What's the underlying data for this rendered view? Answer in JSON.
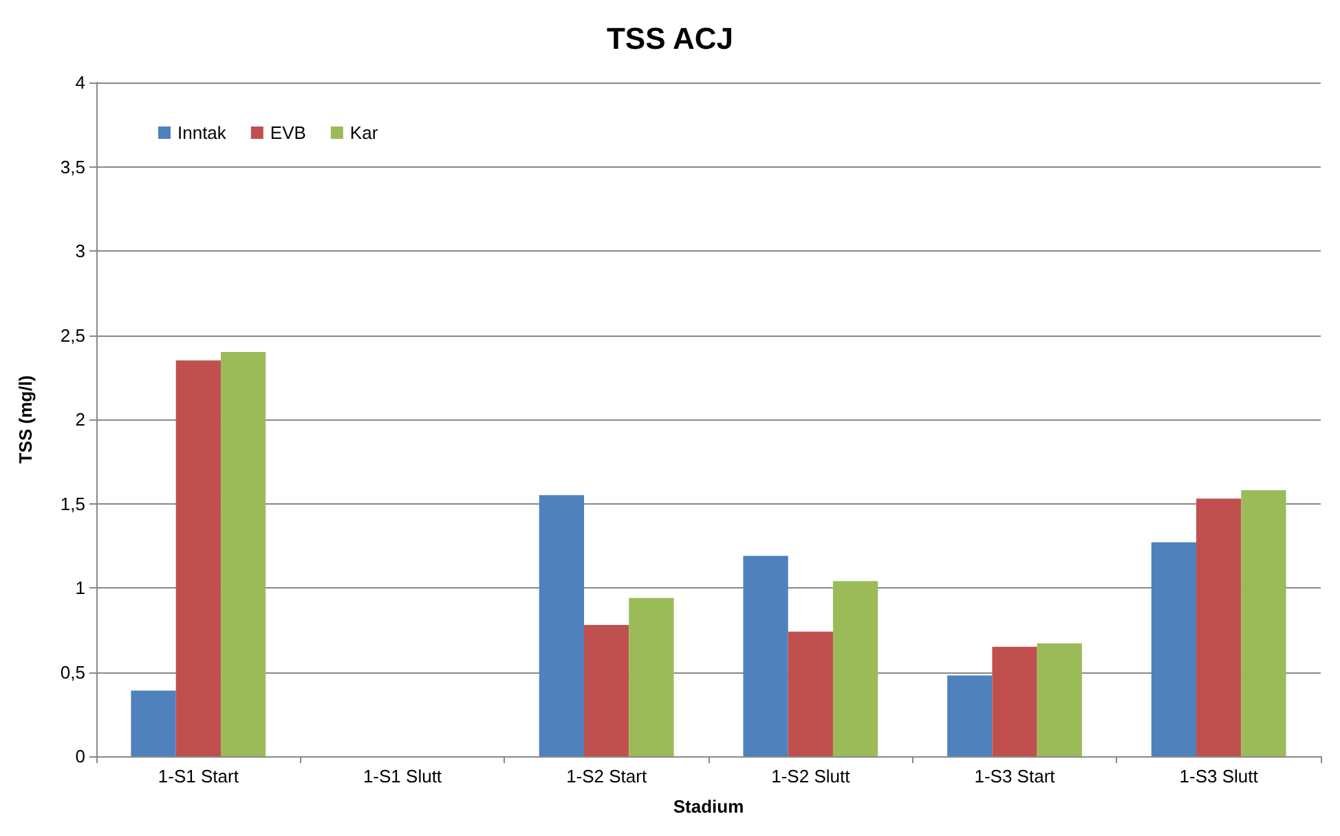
{
  "chart_data": {
    "type": "bar",
    "title": "TSS ACJ",
    "xlabel": "Stadium",
    "ylabel": "TSS (mg/l)",
    "categories": [
      "1-S1 Start",
      "1-S1 Slutt",
      "1-S2 Start",
      "1-S2 Slutt",
      "1-S3 Start",
      "1-S3 Slutt"
    ],
    "series": [
      {
        "name": "Inntak",
        "color": "#4f81bd",
        "values": [
          0.39,
          null,
          1.55,
          1.19,
          0.48,
          1.27
        ]
      },
      {
        "name": "EVB",
        "color": "#c0504d",
        "values": [
          2.35,
          null,
          0.78,
          0.74,
          0.65,
          1.53
        ]
      },
      {
        "name": "Kar",
        "color": "#9bbb59",
        "values": [
          2.4,
          null,
          0.94,
          1.04,
          0.67,
          1.58
        ]
      }
    ],
    "ylim": [
      0,
      4
    ],
    "yticks": [
      0,
      {
        "value": 0.5,
        "label": "0,5"
      },
      1,
      {
        "value": 1.5,
        "label": "1,5"
      },
      2,
      {
        "value": 2.5,
        "label": "2,5"
      },
      3,
      {
        "value": 3.5,
        "label": "3,5"
      },
      4
    ],
    "grid": "y",
    "legend": "top left"
  }
}
